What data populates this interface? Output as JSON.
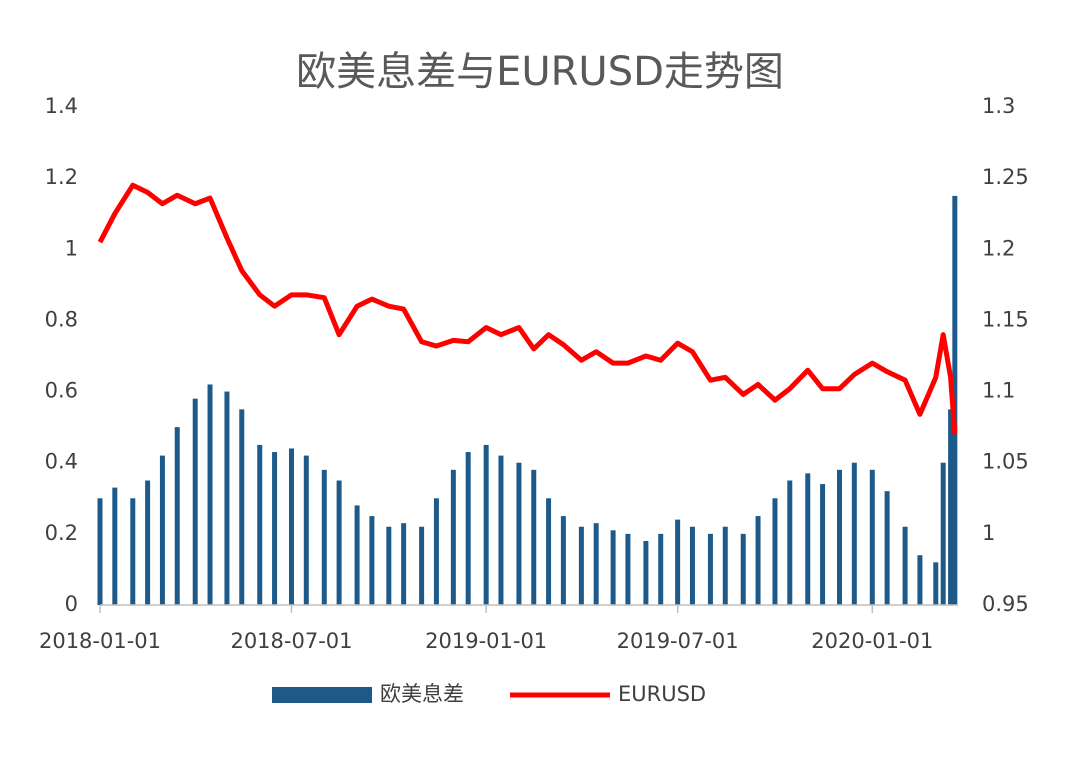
{
  "chart_data": {
    "type": "bar-line",
    "title": "欧美息差与EURUSD走势图",
    "x": [
      "2018-01-01",
      "2018-01-15",
      "2018-02-01",
      "2018-02-15",
      "2018-03-01",
      "2018-03-15",
      "2018-04-01",
      "2018-04-15",
      "2018-05-01",
      "2018-05-15",
      "2018-06-01",
      "2018-06-15",
      "2018-07-01",
      "2018-07-15",
      "2018-08-01",
      "2018-08-15",
      "2018-09-01",
      "2018-09-15",
      "2018-10-01",
      "2018-10-15",
      "2018-11-01",
      "2018-11-15",
      "2018-12-01",
      "2018-12-15",
      "2019-01-01",
      "2019-01-15",
      "2019-02-01",
      "2019-02-15",
      "2019-03-01",
      "2019-03-15",
      "2019-04-01",
      "2019-04-15",
      "2019-05-01",
      "2019-05-15",
      "2019-06-01",
      "2019-06-15",
      "2019-07-01",
      "2019-07-15",
      "2019-08-01",
      "2019-08-15",
      "2019-09-01",
      "2019-09-15",
      "2019-10-01",
      "2019-10-15",
      "2019-11-01",
      "2019-11-15",
      "2019-12-01",
      "2019-12-15",
      "2020-01-01",
      "2020-01-15",
      "2020-02-01",
      "2020-02-15",
      "2020-03-01",
      "2020-03-08",
      "2020-03-15",
      "2020-03-19"
    ],
    "series": [
      {
        "name": "欧美息差",
        "color": "#1d5a8a",
        "axis": "y",
        "values": [
          0.3,
          0.33,
          0.3,
          0.35,
          0.42,
          0.5,
          0.58,
          0.62,
          0.6,
          0.55,
          0.45,
          0.43,
          0.44,
          0.42,
          0.38,
          0.35,
          0.28,
          0.25,
          0.22,
          0.23,
          0.22,
          0.3,
          0.38,
          0.43,
          0.45,
          0.42,
          0.4,
          0.38,
          0.3,
          0.25,
          0.22,
          0.23,
          0.21,
          0.2,
          0.18,
          0.2,
          0.24,
          0.22,
          0.2,
          0.22,
          0.2,
          0.25,
          0.3,
          0.35,
          0.37,
          0.34,
          0.38,
          0.4,
          0.38,
          0.32,
          0.22,
          0.14,
          0.12,
          0.4,
          0.55,
          1.15
        ]
      },
      {
        "name": "EURUSD",
        "color": "#ff0000",
        "axis": "y2",
        "values": [
          1.205,
          1.225,
          1.245,
          1.24,
          1.232,
          1.238,
          1.232,
          1.236,
          1.208,
          1.185,
          1.168,
          1.16,
          1.168,
          1.168,
          1.166,
          1.14,
          1.16,
          1.165,
          1.16,
          1.158,
          1.135,
          1.132,
          1.136,
          1.135,
          1.145,
          1.14,
          1.145,
          1.13,
          1.14,
          1.133,
          1.122,
          1.128,
          1.12,
          1.12,
          1.125,
          1.122,
          1.134,
          1.128,
          1.108,
          1.11,
          1.098,
          1.105,
          1.094,
          1.102,
          1.115,
          1.102,
          1.102,
          1.112,
          1.12,
          1.114,
          1.108,
          1.084,
          1.11,
          1.14,
          1.11,
          1.07
        ]
      }
    ],
    "xlim": [
      "2018-01-01",
      "2020-03-22"
    ],
    "xticks": [
      "2018-01-01",
      "2018-07-01",
      "2019-01-01",
      "2019-07-01",
      "2020-01-01"
    ],
    "ylim": [
      0,
      1.4
    ],
    "yticks": [
      0,
      0.2,
      0.4,
      0.6,
      0.8,
      1,
      1.2,
      1.4
    ],
    "y2lim": [
      0.95,
      1.3
    ],
    "y2ticks": [
      0.95,
      1,
      1.05,
      1.1,
      1.15,
      1.2,
      1.25,
      1.3
    ],
    "grid": false,
    "legend": "bottom"
  }
}
